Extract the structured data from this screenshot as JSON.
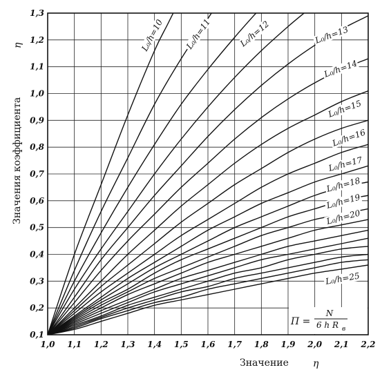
{
  "chart_data": {
    "type": "line",
    "xlabel": "Значение",
    "xlabel_symbol": "η",
    "ylabel": "Значения коэффициента",
    "ylabel_symbol": "η",
    "xlim": [
      1.0,
      2.2
    ],
    "ylim": [
      0.1,
      1.3
    ],
    "x_ticks": [
      "1,0",
      "1,1",
      "1,2",
      "1,3",
      "1,4",
      "1,5",
      "1,6",
      "1,7",
      "1,8",
      "1,9",
      "2,0",
      "2,1",
      "2,2"
    ],
    "y_ticks": [
      "0,1",
      "0,2",
      "0,3",
      "0,4",
      "0,5",
      "0,6",
      "0,7",
      "0,8",
      "0,9",
      "1,0",
      "1,1",
      "1,2",
      "1,3"
    ],
    "grid": true,
    "formula": {
      "lhs": "П =",
      "numerator": "N",
      "denominator": "6 h R",
      "subscript": "в"
    },
    "series": [
      {
        "name": "L₀/h=10",
        "points": [
          [
            1.0,
            0.1
          ],
          [
            1.1,
            0.4
          ],
          [
            1.2,
            0.66
          ],
          [
            1.3,
            0.92
          ],
          [
            1.4,
            1.16
          ],
          [
            1.45,
            1.26
          ],
          [
            1.5,
            1.36
          ]
        ]
      },
      {
        "name": "L₀/h=11",
        "points": [
          [
            1.0,
            0.1
          ],
          [
            1.1,
            0.34
          ],
          [
            1.2,
            0.56
          ],
          [
            1.3,
            0.76
          ],
          [
            1.4,
            0.96
          ],
          [
            1.5,
            1.13
          ],
          [
            1.6,
            1.28
          ],
          [
            1.62,
            1.31
          ]
        ]
      },
      {
        "name": "L₀/h=12",
        "points": [
          [
            1.0,
            0.1
          ],
          [
            1.1,
            0.3
          ],
          [
            1.2,
            0.48
          ],
          [
            1.3,
            0.65
          ],
          [
            1.4,
            0.81
          ],
          [
            1.5,
            0.96
          ],
          [
            1.6,
            1.09
          ],
          [
            1.7,
            1.21
          ],
          [
            1.78,
            1.3
          ]
        ]
      },
      {
        "name": "",
        "points": [
          [
            1.0,
            0.1
          ],
          [
            1.1,
            0.27
          ],
          [
            1.2,
            0.42
          ],
          [
            1.3,
            0.56
          ],
          [
            1.4,
            0.7
          ],
          [
            1.5,
            0.83
          ],
          [
            1.6,
            0.95
          ],
          [
            1.7,
            1.06
          ],
          [
            1.8,
            1.16
          ],
          [
            1.9,
            1.25
          ],
          [
            1.96,
            1.3
          ]
        ]
      },
      {
        "name": "L₀/h=13",
        "points": [
          [
            1.0,
            0.1
          ],
          [
            1.1,
            0.24
          ],
          [
            1.2,
            0.38
          ],
          [
            1.3,
            0.5
          ],
          [
            1.4,
            0.62
          ],
          [
            1.5,
            0.73
          ],
          [
            1.6,
            0.84
          ],
          [
            1.7,
            0.94
          ],
          [
            1.8,
            1.03
          ],
          [
            1.9,
            1.11
          ],
          [
            2.0,
            1.18
          ],
          [
            2.1,
            1.24
          ],
          [
            2.2,
            1.29
          ]
        ]
      },
      {
        "name": "L₀/h=14",
        "points": [
          [
            1.0,
            0.1
          ],
          [
            1.1,
            0.22
          ],
          [
            1.2,
            0.34
          ],
          [
            1.3,
            0.45
          ],
          [
            1.4,
            0.55
          ],
          [
            1.5,
            0.65
          ],
          [
            1.6,
            0.74
          ],
          [
            1.7,
            0.83
          ],
          [
            1.8,
            0.91
          ],
          [
            1.9,
            0.98
          ],
          [
            2.0,
            1.04
          ],
          [
            2.1,
            1.09
          ],
          [
            2.2,
            1.13
          ]
        ]
      },
      {
        "name": "L₀/h=15",
        "points": [
          [
            1.0,
            0.1
          ],
          [
            1.1,
            0.2
          ],
          [
            1.2,
            0.3
          ],
          [
            1.3,
            0.4
          ],
          [
            1.4,
            0.49
          ],
          [
            1.5,
            0.58
          ],
          [
            1.6,
            0.66
          ],
          [
            1.7,
            0.74
          ],
          [
            1.8,
            0.81
          ],
          [
            1.9,
            0.87
          ],
          [
            2.0,
            0.92
          ],
          [
            2.1,
            0.97
          ],
          [
            2.2,
            1.01
          ]
        ]
      },
      {
        "name": "L₀/h=16",
        "points": [
          [
            1.0,
            0.1
          ],
          [
            1.1,
            0.19
          ],
          [
            1.2,
            0.28
          ],
          [
            1.3,
            0.36
          ],
          [
            1.4,
            0.44
          ],
          [
            1.5,
            0.52
          ],
          [
            1.6,
            0.59
          ],
          [
            1.7,
            0.66
          ],
          [
            1.8,
            0.72
          ],
          [
            1.9,
            0.78
          ],
          [
            2.0,
            0.83
          ],
          [
            2.1,
            0.87
          ],
          [
            2.2,
            0.9
          ]
        ]
      },
      {
        "name": "L₀/h=17",
        "points": [
          [
            1.0,
            0.1
          ],
          [
            1.1,
            0.18
          ],
          [
            1.2,
            0.26
          ],
          [
            1.3,
            0.33
          ],
          [
            1.4,
            0.4
          ],
          [
            1.5,
            0.47
          ],
          [
            1.6,
            0.53
          ],
          [
            1.7,
            0.59
          ],
          [
            1.8,
            0.65
          ],
          [
            1.9,
            0.7
          ],
          [
            2.0,
            0.74
          ],
          [
            2.1,
            0.78
          ],
          [
            2.2,
            0.81
          ]
        ]
      },
      {
        "name": "L₀/h=18",
        "points": [
          [
            1.0,
            0.1
          ],
          [
            1.1,
            0.17
          ],
          [
            1.2,
            0.24
          ],
          [
            1.3,
            0.31
          ],
          [
            1.4,
            0.37
          ],
          [
            1.5,
            0.43
          ],
          [
            1.6,
            0.49
          ],
          [
            1.7,
            0.54
          ],
          [
            1.8,
            0.59
          ],
          [
            1.9,
            0.63
          ],
          [
            2.0,
            0.67
          ],
          [
            2.1,
            0.7
          ],
          [
            2.2,
            0.73
          ]
        ]
      },
      {
        "name": "",
        "points": [
          [
            1.0,
            0.1
          ],
          [
            1.1,
            0.165
          ],
          [
            1.2,
            0.23
          ],
          [
            1.3,
            0.29
          ],
          [
            1.4,
            0.35
          ],
          [
            1.5,
            0.4
          ],
          [
            1.6,
            0.45
          ],
          [
            1.7,
            0.5
          ],
          [
            1.8,
            0.54
          ],
          [
            1.9,
            0.58
          ],
          [
            2.0,
            0.62
          ],
          [
            2.1,
            0.65
          ],
          [
            2.2,
            0.67
          ]
        ]
      },
      {
        "name": "L₀/h=19",
        "points": [
          [
            1.0,
            0.1
          ],
          [
            1.1,
            0.16
          ],
          [
            1.2,
            0.22
          ],
          [
            1.3,
            0.27
          ],
          [
            1.4,
            0.33
          ],
          [
            1.5,
            0.38
          ],
          [
            1.6,
            0.42
          ],
          [
            1.7,
            0.46
          ],
          [
            1.8,
            0.5
          ],
          [
            1.9,
            0.54
          ],
          [
            2.0,
            0.57
          ],
          [
            2.1,
            0.6
          ],
          [
            2.2,
            0.62
          ]
        ]
      },
      {
        "name": "",
        "points": [
          [
            1.0,
            0.1
          ],
          [
            1.1,
            0.155
          ],
          [
            1.2,
            0.21
          ],
          [
            1.3,
            0.26
          ],
          [
            1.4,
            0.31
          ],
          [
            1.5,
            0.35
          ],
          [
            1.6,
            0.39
          ],
          [
            1.7,
            0.43
          ],
          [
            1.8,
            0.47
          ],
          [
            1.9,
            0.5
          ],
          [
            2.0,
            0.53
          ],
          [
            2.1,
            0.55
          ],
          [
            2.2,
            0.57
          ]
        ]
      },
      {
        "name": "L₀/h=20",
        "points": [
          [
            1.0,
            0.1
          ],
          [
            1.1,
            0.15
          ],
          [
            1.2,
            0.2
          ],
          [
            1.3,
            0.25
          ],
          [
            1.4,
            0.29
          ],
          [
            1.5,
            0.33
          ],
          [
            1.6,
            0.37
          ],
          [
            1.7,
            0.4
          ],
          [
            1.8,
            0.43
          ],
          [
            1.9,
            0.46
          ],
          [
            2.0,
            0.49
          ],
          [
            2.1,
            0.51
          ],
          [
            2.2,
            0.53
          ]
        ]
      },
      {
        "name": "",
        "points": [
          [
            1.0,
            0.1
          ],
          [
            1.1,
            0.145
          ],
          [
            1.2,
            0.19
          ],
          [
            1.3,
            0.23
          ],
          [
            1.4,
            0.27
          ],
          [
            1.5,
            0.31
          ],
          [
            1.6,
            0.34
          ],
          [
            1.7,
            0.37
          ],
          [
            1.8,
            0.4
          ],
          [
            1.9,
            0.43
          ],
          [
            2.0,
            0.45
          ],
          [
            2.1,
            0.47
          ],
          [
            2.2,
            0.49
          ]
        ]
      },
      {
        "name": "",
        "points": [
          [
            1.0,
            0.1
          ],
          [
            1.1,
            0.14
          ],
          [
            1.2,
            0.18
          ],
          [
            1.3,
            0.22
          ],
          [
            1.4,
            0.26
          ],
          [
            1.5,
            0.29
          ],
          [
            1.6,
            0.32
          ],
          [
            1.7,
            0.35
          ],
          [
            1.8,
            0.38
          ],
          [
            1.9,
            0.4
          ],
          [
            2.0,
            0.42
          ],
          [
            2.1,
            0.44
          ],
          [
            2.2,
            0.46
          ]
        ]
      },
      {
        "name": "",
        "points": [
          [
            1.0,
            0.1
          ],
          [
            1.1,
            0.135
          ],
          [
            1.2,
            0.17
          ],
          [
            1.3,
            0.21
          ],
          [
            1.4,
            0.24
          ],
          [
            1.5,
            0.27
          ],
          [
            1.6,
            0.3
          ],
          [
            1.7,
            0.33
          ],
          [
            1.8,
            0.35
          ],
          [
            1.9,
            0.38
          ],
          [
            2.0,
            0.4
          ],
          [
            2.1,
            0.42
          ],
          [
            2.2,
            0.43
          ]
        ]
      },
      {
        "name": "",
        "points": [
          [
            1.0,
            0.1
          ],
          [
            1.1,
            0.13
          ],
          [
            1.2,
            0.165
          ],
          [
            1.3,
            0.2
          ],
          [
            1.4,
            0.23
          ],
          [
            1.5,
            0.26
          ],
          [
            1.6,
            0.28
          ],
          [
            1.7,
            0.31
          ],
          [
            1.8,
            0.33
          ],
          [
            1.9,
            0.35
          ],
          [
            2.0,
            0.37
          ],
          [
            2.1,
            0.39
          ],
          [
            2.2,
            0.4
          ]
        ]
      },
      {
        "name": "",
        "points": [
          [
            1.0,
            0.1
          ],
          [
            1.1,
            0.125
          ],
          [
            1.2,
            0.16
          ],
          [
            1.3,
            0.19
          ],
          [
            1.4,
            0.22
          ],
          [
            1.5,
            0.24
          ],
          [
            1.6,
            0.27
          ],
          [
            1.7,
            0.29
          ],
          [
            1.8,
            0.31
          ],
          [
            1.9,
            0.33
          ],
          [
            2.0,
            0.35
          ],
          [
            2.1,
            0.37
          ],
          [
            2.2,
            0.38
          ]
        ]
      },
      {
        "name": "L₀/h=25",
        "points": [
          [
            1.0,
            0.1
          ],
          [
            1.1,
            0.12
          ],
          [
            1.2,
            0.15
          ],
          [
            1.3,
            0.18
          ],
          [
            1.4,
            0.21
          ],
          [
            1.5,
            0.23
          ],
          [
            1.6,
            0.25
          ],
          [
            1.7,
            0.27
          ],
          [
            1.8,
            0.29
          ],
          [
            1.9,
            0.31
          ],
          [
            2.0,
            0.33
          ],
          [
            2.1,
            0.345
          ],
          [
            2.2,
            0.36
          ]
        ]
      }
    ]
  }
}
